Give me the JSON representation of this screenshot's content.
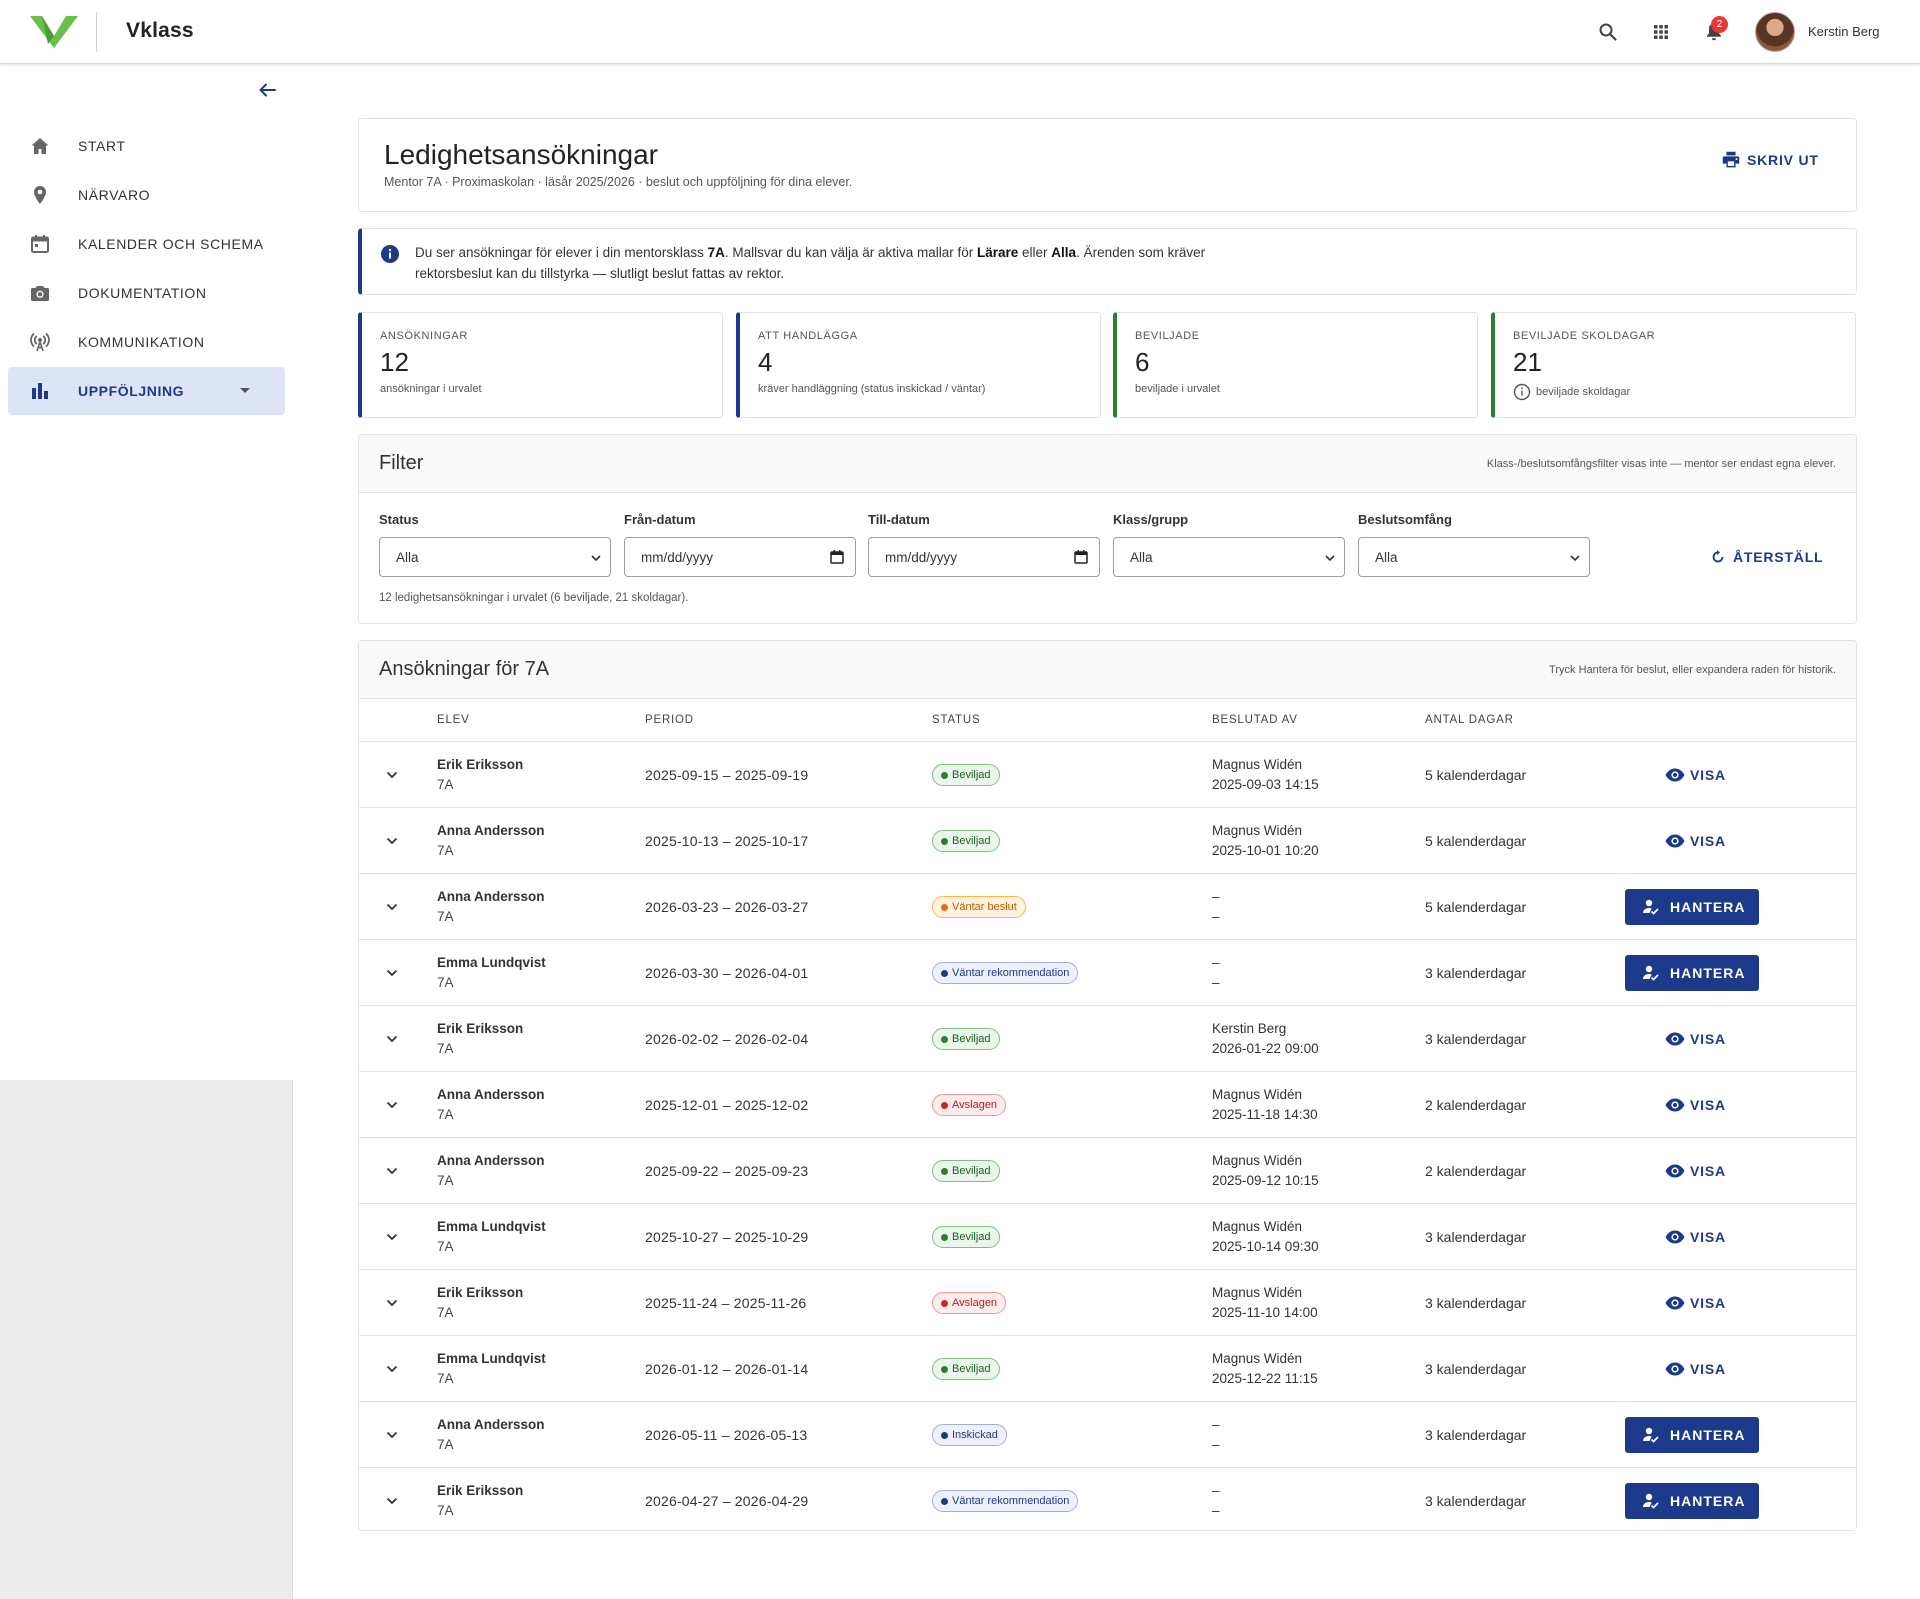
{
  "header": {
    "brand": "Vklass",
    "notification_count": "2",
    "user_name": "Kerstin Berg",
    "icons": [
      "search-icon",
      "apps-grid-icon",
      "bell-icon"
    ]
  },
  "sidebar": {
    "items": [
      {
        "label": "START",
        "icon": "home-icon"
      },
      {
        "label": "NÄRVARO",
        "icon": "location-pin-icon"
      },
      {
        "label": "KALENDER OCH SCHEMA",
        "icon": "calendar-icon"
      },
      {
        "label": "DOKUMENTATION",
        "icon": "camera-icon"
      },
      {
        "label": "KOMMUNIKATION",
        "icon": "broadcast-icon"
      },
      {
        "label": "UPPFÖLJNING",
        "icon": "bar-chart-icon",
        "active": true
      }
    ]
  },
  "page": {
    "title": "Ledighetsansökningar",
    "subtitle": "Mentor 7A · Proximaskolan · läsår 2025/2026 · beslut och uppföljning för dina elever.",
    "print_label": "SKRIV UT"
  },
  "info": {
    "p1": "Du ser ansökningar för elever i din mentorsklass ",
    "b1": "7A",
    "p2": ". Mallsvar du kan välja är aktiva mallar för ",
    "b2": "Lärare",
    "p3": " eller ",
    "b3": "Alla",
    "p4": ". Ärenden som kräver rektorsbeslut kan du tillstyrka — slutligt beslut fattas av rektor."
  },
  "stats": [
    {
      "label": "ANSÖKNINGAR",
      "value": "12",
      "desc": "ansökningar i urvalet",
      "color": "#1d3a8a"
    },
    {
      "label": "ATT HANDLÄGGA",
      "value": "4",
      "desc": "kräver handläggning (status inskickad / väntar)",
      "color": "#1d3a8a"
    },
    {
      "label": "BEVILJADE",
      "value": "6",
      "desc": "beviljade i urvalet",
      "color": "#2e7d32"
    },
    {
      "label": "BEVILJADE SKOLDAGAR",
      "value": "21",
      "desc": "beviljade skoldagar",
      "color": "#2e7d32"
    }
  ],
  "filter": {
    "title": "Filter",
    "note": "Klass-/beslutsomfångsfilter visas inte — mentor ser endast egna elever.",
    "status_label": "Status",
    "status_value": "Alla",
    "from_label": "Från-datum",
    "from_placeholder": "mm/dd/yyyy",
    "to_label": "Till-datum",
    "to_placeholder": "mm/dd/yyyy",
    "class_label": "Klass/grupp",
    "class_value": "Alla",
    "scope_label": "Beslutsomfång",
    "scope_value": "Alla",
    "reset_label": "ÅTERSTÄLL",
    "count_text": "12 ledighetsansökningar i urvalet (6 beviljade, 21 skoldagar)."
  },
  "table": {
    "title": "Ansökningar för 7A",
    "note": "Tryck Hantera för beslut, eller expandera raden för historik.",
    "columns": [
      "ELEV",
      "PERIOD",
      "STATUS",
      "BESLUTAD AV",
      "ANTAL DAGAR"
    ],
    "rows": [
      {
        "name": "Erik Eriksson",
        "class": "7A",
        "period": "2025-09-15 – 2025-09-19",
        "status": "Beviljad",
        "kind": "green",
        "by": "Magnus Widén",
        "date": "2025-09-03 14:15",
        "days": "5 kalenderdagar",
        "action": "VISA"
      },
      {
        "name": "Anna Andersson",
        "class": "7A",
        "period": "2025-10-13 – 2025-10-17",
        "status": "Beviljad",
        "kind": "green",
        "by": "Magnus Widén",
        "date": "2025-10-01 10:20",
        "days": "5 kalenderdagar",
        "action": "VISA"
      },
      {
        "name": "Anna Andersson",
        "class": "7A",
        "period": "2026-03-23 – 2026-03-27",
        "status": "Väntar beslut",
        "kind": "orange",
        "by": "–",
        "date": "–",
        "days": "5 kalenderdagar",
        "action": "HANTERA"
      },
      {
        "name": "Emma Lundqvist",
        "class": "7A",
        "period": "2026-03-30 – 2026-04-01",
        "status": "Väntar rekommendation",
        "kind": "blue",
        "by": "–",
        "date": "–",
        "days": "3 kalenderdagar",
        "action": "HANTERA"
      },
      {
        "name": "Erik Eriksson",
        "class": "7A",
        "period": "2026-02-02 – 2026-02-04",
        "status": "Beviljad",
        "kind": "green",
        "by": "Kerstin Berg",
        "date": "2026-01-22 09:00",
        "days": "3 kalenderdagar",
        "action": "VISA"
      },
      {
        "name": "Anna Andersson",
        "class": "7A",
        "period": "2025-12-01 – 2025-12-02",
        "status": "Avslagen",
        "kind": "red",
        "by": "Magnus Widén",
        "date": "2025-11-18 14:30",
        "days": "2 kalenderdagar",
        "action": "VISA"
      },
      {
        "name": "Anna Andersson",
        "class": "7A",
        "period": "2025-09-22 – 2025-09-23",
        "status": "Beviljad",
        "kind": "green",
        "by": "Magnus Widén",
        "date": "2025-09-12 10:15",
        "days": "2 kalenderdagar",
        "action": "VISA"
      },
      {
        "name": "Emma Lundqvist",
        "class": "7A",
        "period": "2025-10-27 – 2025-10-29",
        "status": "Beviljad",
        "kind": "green",
        "by": "Magnus Widén",
        "date": "2025-10-14 09:30",
        "days": "3 kalenderdagar",
        "action": "VISA"
      },
      {
        "name": "Erik Eriksson",
        "class": "7A",
        "period": "2025-11-24 – 2025-11-26",
        "status": "Avslagen",
        "kind": "red",
        "by": "Magnus Widén",
        "date": "2025-11-10 14:00",
        "days": "3 kalenderdagar",
        "action": "VISA"
      },
      {
        "name": "Emma Lundqvist",
        "class": "7A",
        "period": "2026-01-12 – 2026-01-14",
        "status": "Beviljad",
        "kind": "green",
        "by": "Magnus Widén",
        "date": "2025-12-22 11:15",
        "days": "3 kalenderdagar",
        "action": "VISA"
      },
      {
        "name": "Anna Andersson",
        "class": "7A",
        "period": "2026-05-11 – 2026-05-13",
        "status": "Inskickad",
        "kind": "blue",
        "by": "–",
        "date": "–",
        "days": "3 kalenderdagar",
        "action": "HANTERA"
      },
      {
        "name": "Erik Eriksson",
        "class": "7A",
        "period": "2026-04-27 – 2026-04-29",
        "status": "Väntar rekommendation",
        "kind": "blue",
        "by": "–",
        "date": "–",
        "days": "3 kalenderdagar",
        "action": "HANTERA"
      }
    ]
  },
  "colors": {
    "primary": "#1d3a8a",
    "success": "#2e7d32",
    "warning": "#ef6c00",
    "danger": "#c62828",
    "brand_green": "#6abf4b"
  }
}
